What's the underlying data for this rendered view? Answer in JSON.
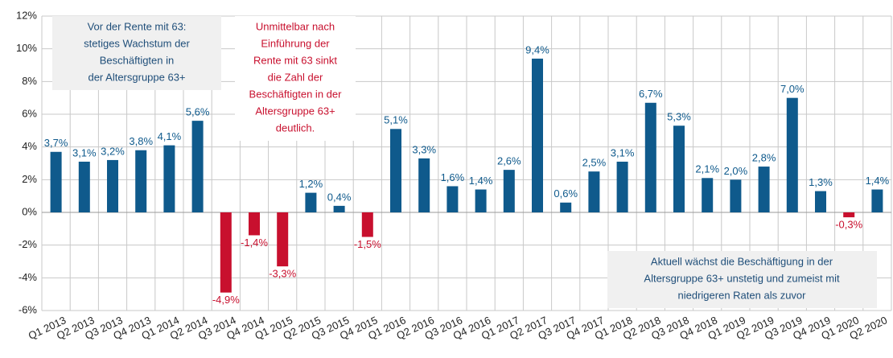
{
  "chart_data": {
    "type": "bar",
    "categories": [
      "Q1 2013",
      "Q2 2013",
      "Q3 2013",
      "Q4 2013",
      "Q1 2014",
      "Q2 2014",
      "Q3 2014",
      "Q4 2014",
      "Q1 2015",
      "Q2 2015",
      "Q3 2015",
      "Q4 2015",
      "Q1 2016",
      "Q2 2016",
      "Q3 2016",
      "Q4 2016",
      "Q1 2017",
      "Q2 2017",
      "Q3 2017",
      "Q4 2017",
      "Q1 2018",
      "Q2 2018",
      "Q3 2018",
      "Q4 2018",
      "Q1 2019",
      "Q2 2019",
      "Q3 2019",
      "Q4 2019",
      "Q1 2020",
      "Q2 2020"
    ],
    "values": [
      3.7,
      3.1,
      3.2,
      3.8,
      4.1,
      5.6,
      -4.9,
      -1.4,
      -3.3,
      1.2,
      0.4,
      -1.5,
      5.1,
      3.3,
      1.6,
      1.4,
      2.6,
      9.4,
      0.6,
      2.5,
      3.1,
      6.7,
      5.3,
      2.1,
      2.0,
      2.8,
      7.0,
      1.3,
      -0.3,
      1.4
    ],
    "value_labels": [
      "3,7%",
      "3,1%",
      "3,2%",
      "3,8%",
      "4,1%",
      "5,6%",
      "-4,9%",
      "-1,4%",
      "-3,3%",
      "1,2%",
      "0,4%",
      "-1,5%",
      "5,1%",
      "3,3%",
      "1,6%",
      "1,4%",
      "2,6%",
      "9,4%",
      "0,6%",
      "2,5%",
      "3,1%",
      "6,7%",
      "5,3%",
      "2,1%",
      "2,0%",
      "2,8%",
      "7,0%",
      "1,3%",
      "-0,3%",
      "1,4%"
    ],
    "color": "#0f5a8c",
    "negative_color": "#c8102e",
    "ylim": [
      -6,
      12
    ],
    "yticks": [
      {
        "value": -6,
        "label": "-6%"
      },
      {
        "value": -4,
        "label": "-4%"
      },
      {
        "value": -2,
        "label": "-2%"
      },
      {
        "value": 0,
        "label": "0%"
      },
      {
        "value": 2,
        "label": "2%"
      },
      {
        "value": 4,
        "label": "4%"
      },
      {
        "value": 6,
        "label": "6%"
      },
      {
        "value": 8,
        "label": "8%"
      },
      {
        "value": 10,
        "label": "10%"
      },
      {
        "value": 12,
        "label": "12%"
      }
    ],
    "grid": true,
    "annotations": [
      {
        "lines": [
          "Vor der Rente mit 63:",
          "stetiges Wachstum der",
          "Beschäftigten in",
          "der Altersgruppe 63+"
        ],
        "color": "#1f4e79",
        "background": "#f0f0f0"
      },
      {
        "lines": [
          "Unmittelbar nach",
          "Einführung der",
          "Rente mit 63 sinkt",
          "die Zahl der",
          "Beschäftigten in der",
          "Altersgruppe 63+",
          "deutlich."
        ],
        "color": "#c8102e",
        "background": "#ffffff"
      },
      {
        "lines": [
          "Aktuell wächst die Beschäftigung in der",
          "Altersgruppe 63+ unstetig und zumeist mit",
          "niedrigeren Raten als zuvor"
        ],
        "color": "#1f4e79",
        "background": "#f0f0f0"
      }
    ]
  }
}
